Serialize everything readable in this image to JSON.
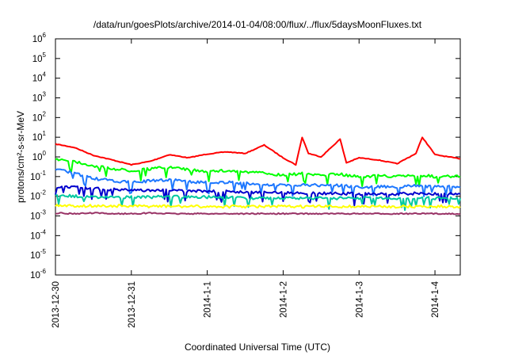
{
  "chart_data": {
    "type": "line",
    "title": "/data/run/goesPlots/archive/2014-01-04/08:00/flux/../flux/5daysMoonFluxes.txt",
    "xlabel": "Coordinated Universal Time (UTC)",
    "ylabel": "protons/cm²-s-sr-MeV",
    "yscale": "log",
    "ylim": [
      1e-06,
      1000000.0
    ],
    "xlim": [
      "2013-12-30T00:00",
      "2014-01-04T08:00"
    ],
    "x_ticks": [
      "2013-12-30",
      "2013-12-31",
      "2014-1-1",
      "2014-1-2",
      "2014-1-3",
      "2014-1-4"
    ],
    "y_ticks": [
      {
        "base": "10",
        "exp": "-6",
        "value": 1e-06
      },
      {
        "base": "10",
        "exp": "-5",
        "value": 1e-05
      },
      {
        "base": "10",
        "exp": "-4",
        "value": 0.0001
      },
      {
        "base": "10",
        "exp": "-3",
        "value": 0.001
      },
      {
        "base": "10",
        "exp": "-2",
        "value": 0.01
      },
      {
        "base": "10",
        "exp": "-1",
        "value": 0.1
      },
      {
        "base": "10",
        "exp": "0",
        "value": 1
      },
      {
        "base": "10",
        "exp": "1",
        "value": 10
      },
      {
        "base": "10",
        "exp": "2",
        "value": 100
      },
      {
        "base": "10",
        "exp": "3",
        "value": 1000
      },
      {
        "base": "10",
        "exp": "4",
        "value": 10000
      },
      {
        "base": "10",
        "exp": "5",
        "value": 100000
      },
      {
        "base": "10",
        "exp": "6",
        "value": 1000000
      }
    ],
    "grid": false,
    "legend": "none",
    "series": [
      {
        "color": "#ff0000",
        "x": [
          "2013-12-30T00:00",
          "2013-12-30T06:00",
          "2013-12-30T12:00",
          "2013-12-30T18:00",
          "2013-12-31T00:00",
          "2013-12-31T06:00",
          "2013-12-31T12:00",
          "2013-12-31T18:00",
          "2014-01-01T00:00",
          "2014-01-01T06:00",
          "2014-01-01T12:00",
          "2014-01-01T18:00",
          "2014-01-02T00:00",
          "2014-01-02T04:00",
          "2014-01-02T06:00",
          "2014-01-02T08:00",
          "2014-01-02T12:00",
          "2014-01-02T18:00",
          "2014-01-02T20:00",
          "2014-01-03T00:00",
          "2014-01-03T06:00",
          "2014-01-03T12:00",
          "2014-01-03T18:00",
          "2014-01-03T20:00",
          "2014-01-04T00:00",
          "2014-01-04T08:00"
        ],
        "y": [
          4.5,
          3.0,
          1.2,
          0.7,
          0.4,
          0.6,
          1.3,
          0.9,
          1.4,
          1.8,
          1.5,
          4.0,
          0.9,
          0.4,
          10,
          1.5,
          1.0,
          8,
          0.5,
          0.9,
          0.7,
          0.45,
          1.5,
          10,
          1.3,
          0.8
        ]
      },
      {
        "color": "#00ff00",
        "x": [
          "2013-12-30T00:00",
          "2013-12-30T06:00",
          "2013-12-30T12:00",
          "2013-12-30T18:00",
          "2013-12-31T00:00",
          "2013-12-31T06:00",
          "2013-12-31T12:00",
          "2013-12-31T18:00",
          "2014-01-01T00:00",
          "2014-01-01T06:00",
          "2014-01-01T12:00",
          "2014-01-01T18:00",
          "2014-01-02T00:00",
          "2014-01-02T06:00",
          "2014-01-02T12:00",
          "2014-01-02T18:00",
          "2014-01-03T00:00",
          "2014-01-03T06:00",
          "2014-01-03T12:00",
          "2014-01-03T18:00",
          "2014-01-04T00:00",
          "2014-01-04T08:00"
        ],
        "y": [
          0.8,
          0.6,
          0.35,
          0.25,
          0.2,
          0.25,
          0.3,
          0.22,
          0.18,
          0.2,
          0.17,
          0.15,
          0.12,
          0.14,
          0.12,
          0.13,
          0.1,
          0.11,
          0.1,
          0.12,
          0.1,
          0.1
        ]
      },
      {
        "color": "#1e78ff",
        "x": [
          "2013-12-30T00:00",
          "2013-12-30T06:00",
          "2013-12-30T12:00",
          "2013-12-30T18:00",
          "2013-12-31T00:00",
          "2013-12-31T06:00",
          "2013-12-31T12:00",
          "2013-12-31T18:00",
          "2014-01-01T00:00",
          "2014-01-01T06:00",
          "2014-01-01T12:00",
          "2014-01-01T18:00",
          "2014-01-02T00:00",
          "2014-01-02T06:00",
          "2014-01-02T12:00",
          "2014-01-02T18:00",
          "2014-01-03T00:00",
          "2014-01-03T06:00",
          "2014-01-03T12:00",
          "2014-01-03T18:00",
          "2014-01-04T00:00",
          "2014-01-04T08:00"
        ],
        "y": [
          0.25,
          0.15,
          0.08,
          0.06,
          0.05,
          0.06,
          0.07,
          0.055,
          0.05,
          0.05,
          0.045,
          0.04,
          0.035,
          0.04,
          0.035,
          0.035,
          0.03,
          0.03,
          0.03,
          0.035,
          0.03,
          0.03
        ]
      },
      {
        "color": "#0000cd",
        "x": [
          "2013-12-30T00:00",
          "2013-12-30T06:00",
          "2013-12-30T12:00",
          "2013-12-30T18:00",
          "2013-12-31T00:00",
          "2013-12-31T06:00",
          "2013-12-31T12:00",
          "2013-12-31T18:00",
          "2014-01-01T00:00",
          "2014-01-01T06:00",
          "2014-01-01T12:00",
          "2014-01-01T18:00",
          "2014-01-02T00:00",
          "2014-01-02T06:00",
          "2014-01-02T12:00",
          "2014-01-02T18:00",
          "2014-01-03T00:00",
          "2014-01-03T06:00",
          "2014-01-03T12:00",
          "2014-01-03T18:00",
          "2014-01-04T00:00",
          "2014-01-04T08:00"
        ],
        "y": [
          0.03,
          0.03,
          0.025,
          0.022,
          0.02,
          0.02,
          0.02,
          0.018,
          0.018,
          0.017,
          0.016,
          0.016,
          0.015,
          0.015,
          0.014,
          0.014,
          0.013,
          0.013,
          0.013,
          0.014,
          0.013,
          0.013
        ]
      },
      {
        "color": "#00c8a0",
        "x": [
          "2013-12-30T00:00",
          "2013-12-30T06:00",
          "2013-12-30T12:00",
          "2013-12-30T18:00",
          "2013-12-31T00:00",
          "2013-12-31T06:00",
          "2013-12-31T12:00",
          "2013-12-31T18:00",
          "2014-01-01T00:00",
          "2014-01-01T06:00",
          "2014-01-01T12:00",
          "2014-01-01T18:00",
          "2014-01-02T00:00",
          "2014-01-02T06:00",
          "2014-01-02T12:00",
          "2014-01-02T18:00",
          "2014-01-03T00:00",
          "2014-01-03T06:00",
          "2014-01-03T12:00",
          "2014-01-03T18:00",
          "2014-01-04T00:00",
          "2014-01-04T08:00"
        ],
        "y": [
          0.012,
          0.01,
          0.009,
          0.009,
          0.009,
          0.009,
          0.01,
          0.009,
          0.009,
          0.009,
          0.008,
          0.008,
          0.008,
          0.008,
          0.008,
          0.008,
          0.008,
          0.008,
          0.008,
          0.008,
          0.008,
          0.008
        ]
      },
      {
        "color": "#ffff00",
        "x": [
          "2013-12-30T00:00",
          "2013-12-30T06:00",
          "2013-12-30T12:00",
          "2013-12-30T18:00",
          "2013-12-31T00:00",
          "2013-12-31T06:00",
          "2013-12-31T12:00",
          "2013-12-31T18:00",
          "2014-01-01T00:00",
          "2014-01-01T06:00",
          "2014-01-01T12:00",
          "2014-01-01T18:00",
          "2014-01-02T00:00",
          "2014-01-02T06:00",
          "2014-01-02T12:00",
          "2014-01-02T18:00",
          "2014-01-03T00:00",
          "2014-01-03T06:00",
          "2014-01-03T12:00",
          "2014-01-03T18:00",
          "2014-01-04T00:00",
          "2014-01-04T08:00"
        ],
        "y": [
          0.0035,
          0.0033,
          0.0032,
          0.0032,
          0.0031,
          0.0031,
          0.0031,
          0.003,
          0.003,
          0.003,
          0.003,
          0.003,
          0.003,
          0.003,
          0.003,
          0.003,
          0.003,
          0.003,
          0.003,
          0.003,
          0.003,
          0.003
        ]
      },
      {
        "color": "#993366",
        "x": [
          "2013-12-30T00:00",
          "2013-12-30T06:00",
          "2013-12-30T12:00",
          "2013-12-30T18:00",
          "2013-12-31T00:00",
          "2013-12-31T06:00",
          "2013-12-31T12:00",
          "2013-12-31T18:00",
          "2014-01-01T00:00",
          "2014-01-01T06:00",
          "2014-01-01T12:00",
          "2014-01-01T18:00",
          "2014-01-02T00:00",
          "2014-01-02T06:00",
          "2014-01-02T12:00",
          "2014-01-02T18:00",
          "2014-01-03T00:00",
          "2014-01-03T06:00",
          "2014-01-03T12:00",
          "2014-01-03T18:00",
          "2014-01-04T00:00",
          "2014-01-04T08:00"
        ],
        "y": [
          0.0014,
          0.0013,
          0.0014,
          0.0013,
          0.0013,
          0.0014,
          0.0013,
          0.0013,
          0.0013,
          0.0013,
          0.0013,
          0.0013,
          0.0013,
          0.0013,
          0.0013,
          0.0013,
          0.0013,
          0.0013,
          0.0013,
          0.0013,
          0.0013,
          0.0013
        ]
      }
    ]
  }
}
